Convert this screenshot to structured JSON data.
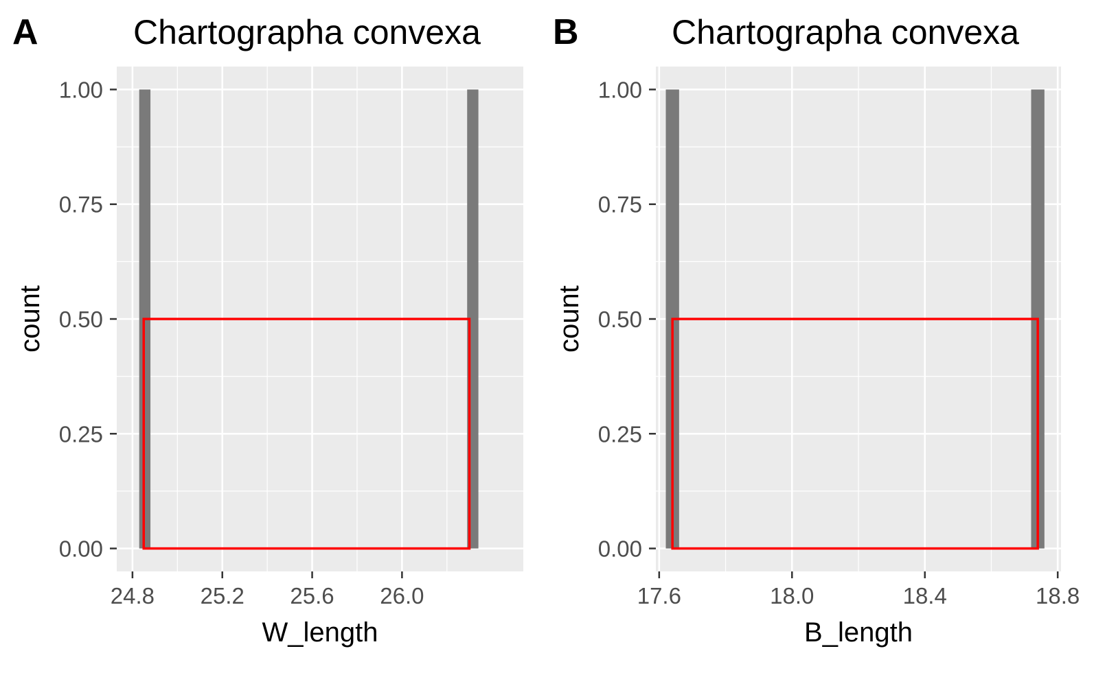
{
  "chart_data": [
    {
      "type": "bar",
      "panel_tag": "A",
      "title": "Chartographa convexa",
      "xlabel": "W_length",
      "ylabel": "count",
      "xlim": [
        24.73,
        26.54
      ],
      "ylim": [
        -0.05,
        1.05
      ],
      "x_ticks": [
        {
          "value": 24.8,
          "label": "24.8"
        },
        {
          "value": 25.2,
          "label": "25.2"
        },
        {
          "value": 25.6,
          "label": "25.6"
        },
        {
          "value": 26.0,
          "label": "26.0"
        }
      ],
      "y_ticks": [
        {
          "value": 0,
          "label": "0.00"
        },
        {
          "value": 0.25,
          "label": "0.25"
        },
        {
          "value": 0.5,
          "label": "0.50"
        },
        {
          "value": 0.75,
          "label": "0.75"
        },
        {
          "value": 1,
          "label": "1.00"
        }
      ],
      "bars": [
        {
          "x_start": 24.83,
          "x_end": 24.88,
          "count": 1
        },
        {
          "x_start": 26.29,
          "x_end": 26.34,
          "count": 1
        }
      ],
      "highlight_box": {
        "x_start": 24.85,
        "x_end": 26.3,
        "y_start": 0,
        "y_end": 0.5,
        "color": "#ff0000"
      },
      "grid": true,
      "bar_color": "#7a7a7a",
      "panel_background": "#ebebeb"
    },
    {
      "type": "bar",
      "panel_tag": "B",
      "title": "Chartographa convexa",
      "xlabel": "B_length",
      "ylabel": "count",
      "xlim": [
        17.59,
        18.81
      ],
      "ylim": [
        -0.05,
        1.05
      ],
      "x_ticks": [
        {
          "value": 17.6,
          "label": "17.6"
        },
        {
          "value": 18.0,
          "label": "18.0"
        },
        {
          "value": 18.4,
          "label": "18.4"
        },
        {
          "value": 18.8,
          "label": "18.8"
        }
      ],
      "y_ticks": [
        {
          "value": 0,
          "label": "0.00"
        },
        {
          "value": 0.25,
          "label": "0.25"
        },
        {
          "value": 0.5,
          "label": "0.50"
        },
        {
          "value": 0.75,
          "label": "0.75"
        },
        {
          "value": 1,
          "label": "1.00"
        }
      ],
      "bars": [
        {
          "x_start": 17.62,
          "x_end": 17.66,
          "count": 1
        },
        {
          "x_start": 18.72,
          "x_end": 18.76,
          "count": 1
        }
      ],
      "highlight_box": {
        "x_start": 17.64,
        "x_end": 18.74,
        "y_start": 0,
        "y_end": 0.5,
        "color": "#ff0000"
      },
      "grid": true,
      "bar_color": "#7a7a7a",
      "panel_background": "#ebebeb"
    }
  ]
}
